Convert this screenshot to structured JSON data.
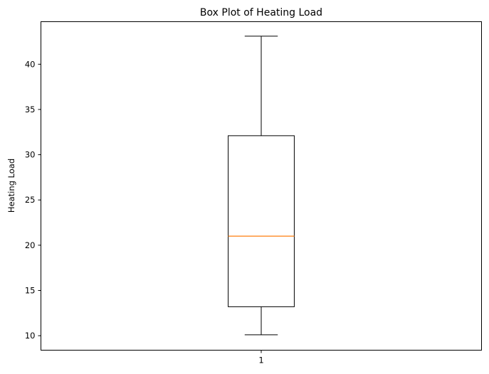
{
  "chart_data": {
    "type": "box",
    "title": "Box Plot of Heating Load",
    "xlabel": "",
    "ylabel": "Heating Load",
    "ylim": [
      8.4,
      44.7
    ],
    "yticks": [
      10,
      15,
      20,
      25,
      30,
      35,
      40
    ],
    "categories": [
      "1"
    ],
    "boxes": [
      {
        "category": "1",
        "whisker_low": 10.1,
        "q1": 13.2,
        "median": 21.0,
        "q3": 32.1,
        "whisker_high": 43.1
      }
    ],
    "grid": false,
    "colors": {
      "box": "#000000",
      "median": "#ff7f0e"
    }
  }
}
